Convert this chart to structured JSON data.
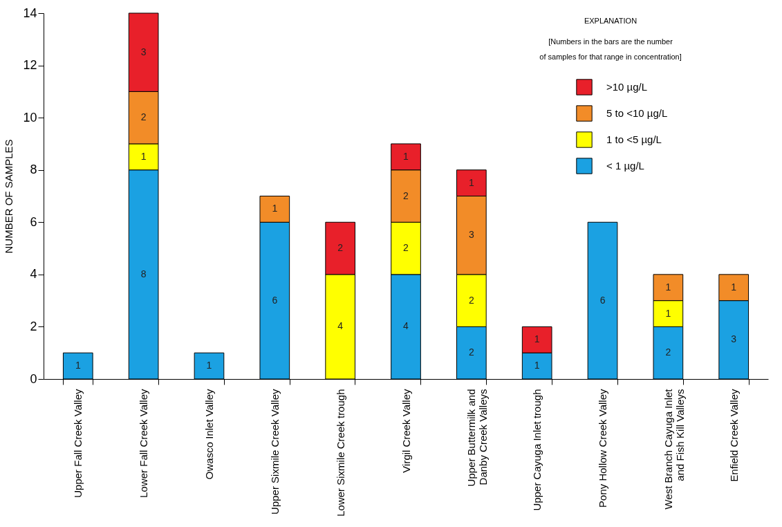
{
  "chart_data": {
    "type": "bar",
    "stacked": true,
    "ylabel": "NUMBER OF SAMPLES",
    "legend_title": "EXPLANATION",
    "annotations": [
      "[Numbers in the bars are the number of samples for that range in concentration]"
    ],
    "categories": [
      "Upper Fall Creek Valley",
      "Lower Fall Creek Valley",
      "Owasco Inlet Valley",
      "Upper Sixmile Creek Valley",
      "Lower Sixmile Creek trough",
      "Virgil Creek Valley",
      "Upper Buttermilk and Danby Creek Valleys",
      "Upper Cayuga Inlet trough",
      "Pony Hollow Creek Valley",
      "West Branch Cayuga Inlet and Fish Kill Valleys",
      "Enfield Creek Valley"
    ],
    "series": [
      {
        "name": "< 1 µg/L",
        "color": "#1ba1e2",
        "values": [
          1,
          8,
          1,
          6,
          null,
          4,
          2,
          1,
          6,
          2,
          3
        ]
      },
      {
        "name": "1 to <5 µg/L",
        "color": "#ffff00",
        "values": [
          null,
          1,
          null,
          null,
          4,
          2,
          2,
          null,
          null,
          1,
          null
        ]
      },
      {
        "name": "5 to <10 µg/L",
        "color": "#f28c28",
        "values": [
          null,
          2,
          null,
          1,
          null,
          2,
          3,
          null,
          null,
          1,
          1
        ]
      },
      {
        "name": ">10 µg/L",
        "color": "#e8202a",
        "values": [
          null,
          3,
          null,
          null,
          2,
          1,
          1,
          1,
          null,
          null,
          null
        ]
      }
    ],
    "ylim": [
      0,
      14
    ],
    "yticks": [
      0,
      2,
      4,
      6,
      8,
      10,
      12,
      14
    ],
    "grid": false,
    "legend": "top right",
    "data_labels": true
  }
}
